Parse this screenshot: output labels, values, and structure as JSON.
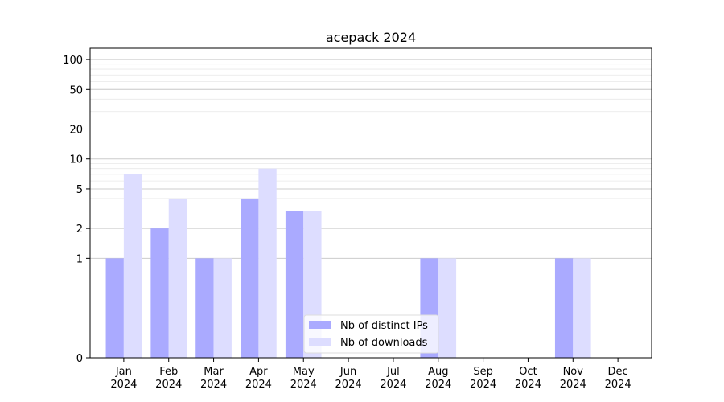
{
  "chart_data": {
    "type": "bar",
    "title": "acepack 2024",
    "xlabel": "",
    "ylabel": "",
    "categories": [
      [
        "Jan",
        "2024"
      ],
      [
        "Feb",
        "2024"
      ],
      [
        "Mar",
        "2024"
      ],
      [
        "Apr",
        "2024"
      ],
      [
        "May",
        "2024"
      ],
      [
        "Jun",
        "2024"
      ],
      [
        "Jul",
        "2024"
      ],
      [
        "Aug",
        "2024"
      ],
      [
        "Sep",
        "2024"
      ],
      [
        "Oct",
        "2024"
      ],
      [
        "Nov",
        "2024"
      ],
      [
        "Dec",
        "2024"
      ]
    ],
    "series": [
      {
        "name": "Nb of distinct IPs",
        "color": "#aaaaff",
        "values": [
          1,
          2,
          1,
          4,
          3,
          0,
          0,
          1,
          0,
          0,
          1,
          0
        ]
      },
      {
        "name": "Nb of downloads",
        "color": "#ddddff",
        "values": [
          7,
          4,
          1,
          8,
          3,
          0,
          0,
          1,
          0,
          0,
          1,
          0
        ]
      }
    ],
    "y_scale": "symlog",
    "ylim": [
      0,
      130
    ],
    "y_ticks": [
      0,
      1,
      2,
      5,
      10,
      20,
      50,
      100
    ],
    "y_tick_labels": [
      "0",
      "1",
      "2",
      "5",
      "10",
      "20",
      "50",
      "100"
    ],
    "grid": true,
    "legend_placement": "lower-center"
  }
}
